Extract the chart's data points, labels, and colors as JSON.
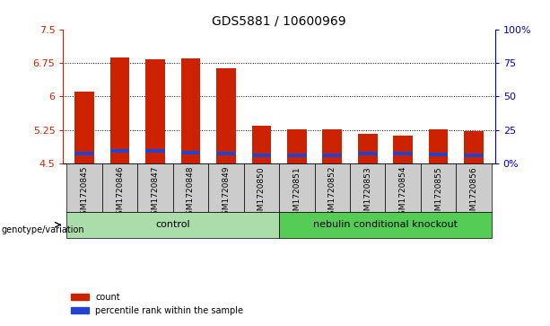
{
  "title": "GDS5881 / 10600969",
  "samples": [
    "GSM1720845",
    "GSM1720846",
    "GSM1720847",
    "GSM1720848",
    "GSM1720849",
    "GSM1720850",
    "GSM1720851",
    "GSM1720852",
    "GSM1720853",
    "GSM1720854",
    "GSM1720855",
    "GSM1720856"
  ],
  "red_values": [
    6.1,
    6.88,
    6.84,
    6.85,
    6.63,
    5.35,
    5.27,
    5.27,
    5.17,
    5.13,
    5.27,
    5.23
  ],
  "blue_values": [
    4.72,
    4.78,
    4.78,
    4.75,
    4.72,
    4.68,
    4.68,
    4.68,
    4.73,
    4.72,
    4.7,
    4.68
  ],
  "ymin": 4.5,
  "ymax": 7.5,
  "y_ticks": [
    4.5,
    5.25,
    6.0,
    6.75,
    7.5
  ],
  "right_y_ticks": [
    0,
    25,
    50,
    75,
    100
  ],
  "right_y_labels": [
    "0%",
    "25",
    "50",
    "75",
    "100%"
  ],
  "bar_color": "#CC2200",
  "blue_color": "#2244CC",
  "bar_width": 0.55,
  "control_indices": [
    0,
    1,
    2,
    3,
    4,
    5
  ],
  "knockout_indices": [
    6,
    7,
    8,
    9,
    10,
    11
  ],
  "control_label": "control",
  "knockout_label": "nebulin conditional knockout",
  "control_color": "#AADDAA",
  "knockout_color": "#55CC55",
  "label_row_color": "#CCCCCC",
  "group_row_label": "genotype/variation",
  "legend_items": [
    {
      "color": "#CC2200",
      "label": "count"
    },
    {
      "color": "#2244CC",
      "label": "percentile rank within the sample"
    }
  ],
  "background_color": "#ffffff",
  "tick_label_color_left": "#CC2200",
  "tick_label_color_right": "#0000CC",
  "y_tick_labels": [
    "4.5",
    "5.25",
    "6",
    "6.75",
    "7.5"
  ]
}
